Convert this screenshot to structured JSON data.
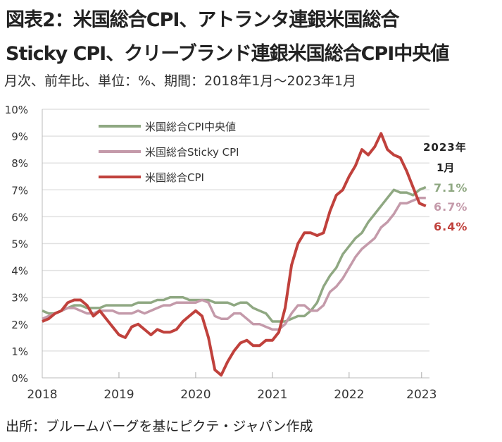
{
  "title_line1": "図表2：米国総合CPI、アトランタ連銀米国総合",
  "title_line2": "Sticky CPI、クリーブランド連銀米国総合CPI中央値",
  "subtitle": "月次、前年比、単位：%、期間：2018年1月～2023年1月",
  "source": "出所：ブルームバーグを基にピクテ・ジャパン作成",
  "chart_data": {
    "type": "line",
    "x_start": "2018-01",
    "x_end": "2023-01",
    "frequency": "monthly",
    "xticks": [
      "2018",
      "2019",
      "2020",
      "2021",
      "2022",
      "2023"
    ],
    "yticks": [
      "0%",
      "1%",
      "2%",
      "3%",
      "4%",
      "5%",
      "6%",
      "7%",
      "8%",
      "9%",
      "10%"
    ],
    "ylim": [
      0,
      10
    ],
    "grid": "horizontal",
    "legend_position": "top-left",
    "end_label_header": [
      "2023年",
      "1月"
    ],
    "series": [
      {
        "name": "米国総合CPI中央値",
        "color": "#8fa882",
        "end_label": "7.1%",
        "values": [
          2.5,
          2.4,
          2.4,
          2.5,
          2.6,
          2.7,
          2.7,
          2.6,
          2.6,
          2.6,
          2.7,
          2.7,
          2.7,
          2.7,
          2.7,
          2.8,
          2.8,
          2.8,
          2.9,
          2.9,
          3.0,
          3.0,
          3.0,
          2.9,
          2.9,
          2.9,
          2.9,
          2.8,
          2.8,
          2.8,
          2.7,
          2.8,
          2.8,
          2.6,
          2.5,
          2.4,
          2.1,
          2.1,
          2.1,
          2.2,
          2.3,
          2.3,
          2.5,
          2.8,
          3.4,
          3.8,
          4.1,
          4.6,
          4.9,
          5.2,
          5.4,
          5.8,
          6.1,
          6.4,
          6.7,
          7.0,
          6.9,
          6.9,
          6.8,
          7.0,
          7.1
        ]
      },
      {
        "name": "米国総合Sticky CPI",
        "color": "#c49aaa",
        "end_label": "6.7%",
        "values": [
          2.2,
          2.3,
          2.4,
          2.5,
          2.6,
          2.6,
          2.5,
          2.4,
          2.4,
          2.5,
          2.5,
          2.5,
          2.4,
          2.4,
          2.4,
          2.5,
          2.4,
          2.5,
          2.6,
          2.7,
          2.7,
          2.8,
          2.8,
          2.8,
          2.8,
          2.9,
          2.8,
          2.3,
          2.2,
          2.2,
          2.4,
          2.4,
          2.2,
          2.0,
          2.0,
          1.9,
          1.8,
          1.8,
          2.0,
          2.4,
          2.7,
          2.7,
          2.5,
          2.5,
          2.7,
          3.2,
          3.4,
          3.7,
          4.1,
          4.5,
          4.8,
          5.0,
          5.2,
          5.6,
          5.8,
          6.1,
          6.5,
          6.5,
          6.6,
          6.7,
          6.7
        ]
      },
      {
        "name": "米国総合CPI",
        "color": "#c0413c",
        "end_label": "6.4%",
        "values": [
          2.1,
          2.2,
          2.4,
          2.5,
          2.8,
          2.9,
          2.9,
          2.7,
          2.3,
          2.5,
          2.2,
          1.9,
          1.6,
          1.5,
          1.9,
          2.0,
          1.8,
          1.6,
          1.8,
          1.7,
          1.7,
          1.8,
          2.1,
          2.3,
          2.5,
          2.3,
          1.5,
          0.3,
          0.1,
          0.6,
          1.0,
          1.3,
          1.4,
          1.2,
          1.2,
          1.4,
          1.4,
          1.7,
          2.6,
          4.2,
          5.0,
          5.4,
          5.4,
          5.3,
          5.4,
          6.2,
          6.8,
          7.0,
          7.5,
          7.9,
          8.5,
          8.3,
          8.6,
          9.1,
          8.5,
          8.3,
          8.2,
          7.7,
          7.1,
          6.5,
          6.4
        ]
      }
    ]
  }
}
